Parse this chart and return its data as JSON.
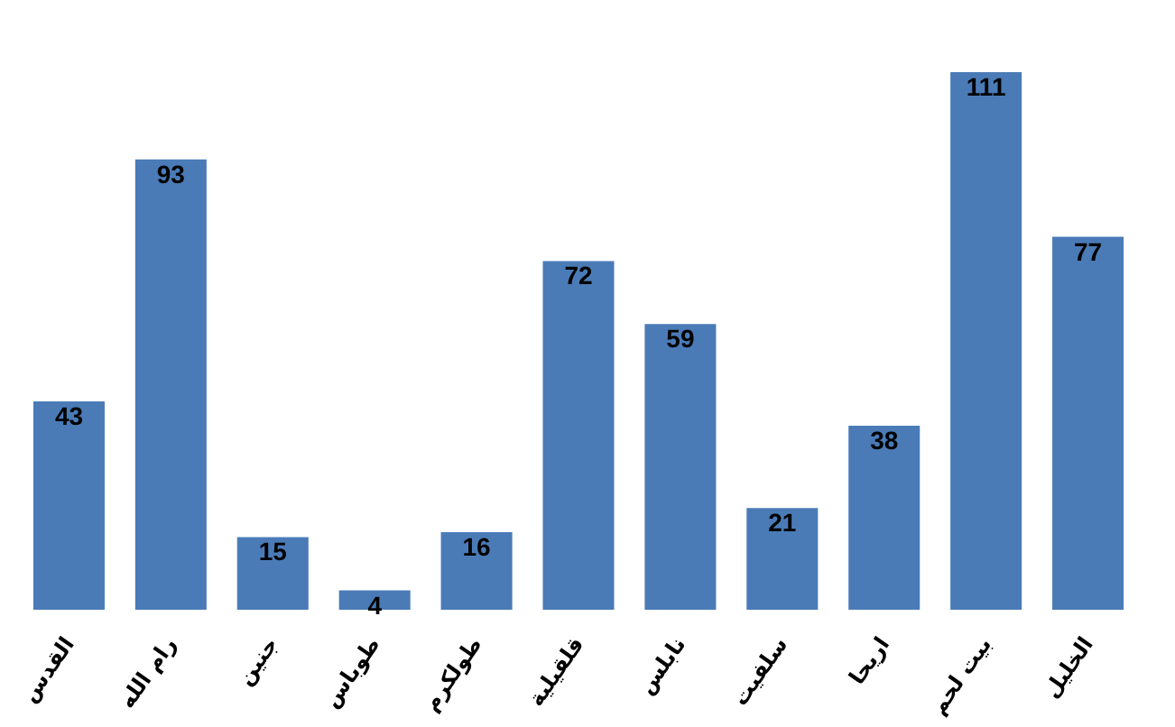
{
  "chart_data": {
    "type": "bar",
    "categories": [
      "القدس",
      "رام الله",
      "جنين",
      "طوباس",
      "طولكرم",
      "قلقيلية",
      "نابلس",
      "سلفيت",
      "اريحا",
      "بيت لحم",
      "الخليل"
    ],
    "values": [
      43,
      93,
      15,
      4,
      16,
      72,
      59,
      21,
      38,
      111,
      77
    ],
    "color": "#4a7bb7",
    "data_labels": true,
    "tick_labels": "x"
  }
}
